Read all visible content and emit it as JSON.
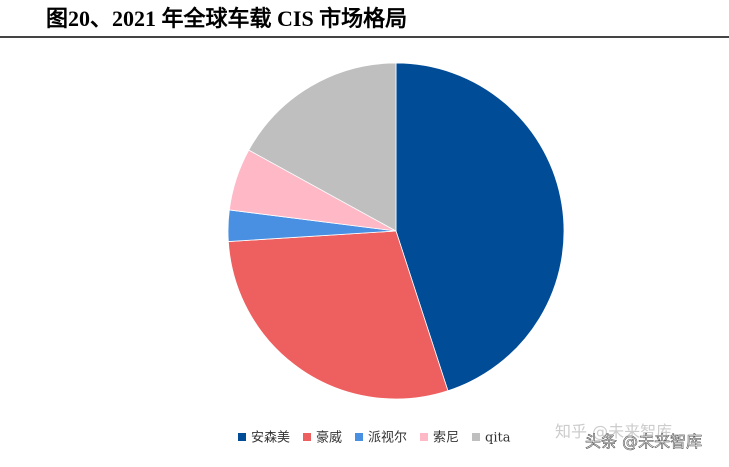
{
  "chart_data": {
    "type": "pie",
    "title": "图20、2021 年全球车载 CIS 市场格局",
    "categories": [
      "安森美",
      "豪威",
      "派视尔",
      "索尼",
      "qita"
    ],
    "values": [
      45,
      29,
      3,
      6,
      17
    ],
    "colors": [
      "#004c97",
      "#ee5f5f",
      "#4a90e2",
      "#ffb8c6",
      "#bfbfbf"
    ],
    "legend": "bottom"
  },
  "watermarks": [
    "知乎 @未来智库",
    "头条 @未来智库"
  ]
}
